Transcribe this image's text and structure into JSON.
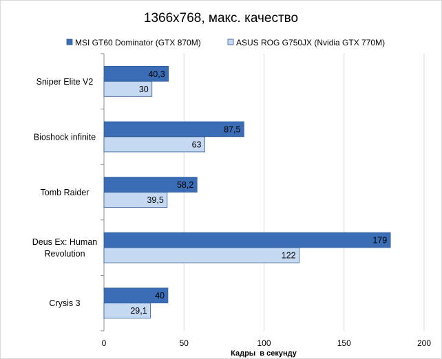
{
  "chart_data": {
    "type": "bar",
    "orientation": "horizontal",
    "title": "1366x768, макс. качество",
    "xlabel": "Кадры  в секунду",
    "ylabel": "",
    "xlim": [
      0,
      200
    ],
    "ticks": [
      0,
      50,
      100,
      150,
      200
    ],
    "grid": true,
    "legend_position": "top",
    "categories": [
      "Sniper Elite V2",
      "Bioshock infinite",
      "Tomb Raider",
      "Deus Ex: Human Revolution",
      "Crysis 3"
    ],
    "category_lines": [
      [
        "Sniper Elite V2"
      ],
      [
        "Bioshock infinite"
      ],
      [
        "Tomb Raider"
      ],
      [
        "Deus Ex: Human",
        "Revolution"
      ],
      [
        "Crysis 3"
      ]
    ],
    "series": [
      {
        "name": "MSI GT60 Dominator (GTX 870M)",
        "values": [
          40.3,
          87.5,
          58.2,
          179,
          40
        ],
        "labels": [
          "40,3",
          "87,5",
          "58,2",
          "179",
          "40"
        ],
        "color": "#3a6db5"
      },
      {
        "name": "ASUS ROG G750JX (Nvidia GTX 770M)",
        "values": [
          30,
          63,
          39.5,
          122,
          29.1
        ],
        "labels": [
          "30",
          "63",
          "39,5",
          "122",
          "29,1"
        ],
        "color": "#c6d9f3"
      }
    ]
  }
}
